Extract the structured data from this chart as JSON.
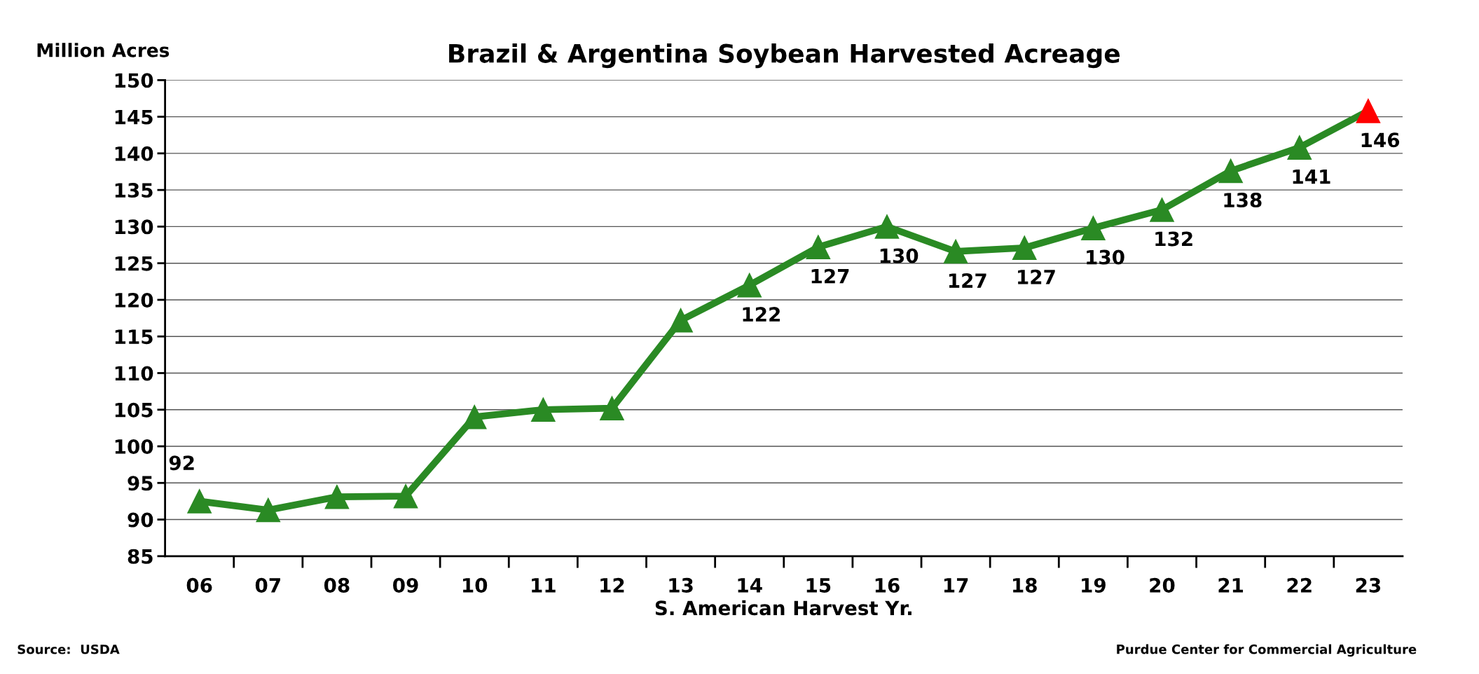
{
  "chart_data": {
    "type": "line",
    "title": "Brazil & Argentina Soybean Harvested Acreage",
    "ylabel": "Million Acres",
    "xlabel": "S. American Harvest Yr.",
    "categories": [
      "06",
      "07",
      "08",
      "09",
      "10",
      "11",
      "12",
      "13",
      "14",
      "15",
      "16",
      "17",
      "18",
      "19",
      "20",
      "21",
      "22",
      "23"
    ],
    "series": [
      {
        "color": "#2a8a24",
        "colors": [
          "#2a8a24",
          "#2a8a24",
          "#2a8a24",
          "#2a8a24",
          "#2a8a24",
          "#2a8a24",
          "#2a8a24",
          "#2a8a24",
          "#2a8a24",
          "#2a8a24",
          "#2a8a24",
          "#2a8a24",
          "#2a8a24",
          "#2a8a24",
          "#2a8a24",
          "#2a8a24",
          "#2a8a24",
          "#ff0000"
        ],
        "values": [
          92.5,
          91.3,
          93.1,
          93.2,
          104.0,
          105.0,
          105.2,
          117.2,
          122.0,
          127.2,
          130.0,
          126.6,
          127.1,
          129.8,
          132.3,
          137.6,
          140.8,
          145.8
        ],
        "value_labels": [
          "92",
          null,
          null,
          null,
          null,
          null,
          null,
          null,
          "122",
          "127",
          "130",
          "127",
          "127",
          "130",
          "132",
          "138",
          "141",
          "146"
        ]
      }
    ],
    "ylim": [
      85,
      150
    ],
    "yticks": [
      85,
      90,
      95,
      100,
      105,
      110,
      115,
      120,
      125,
      130,
      135,
      140,
      145,
      150
    ],
    "grid": "y",
    "marker": "triangle",
    "line_style": "solid",
    "annotations": [
      "Source:  USDA",
      "Purdue Center for Commercial Agriculture"
    ]
  }
}
